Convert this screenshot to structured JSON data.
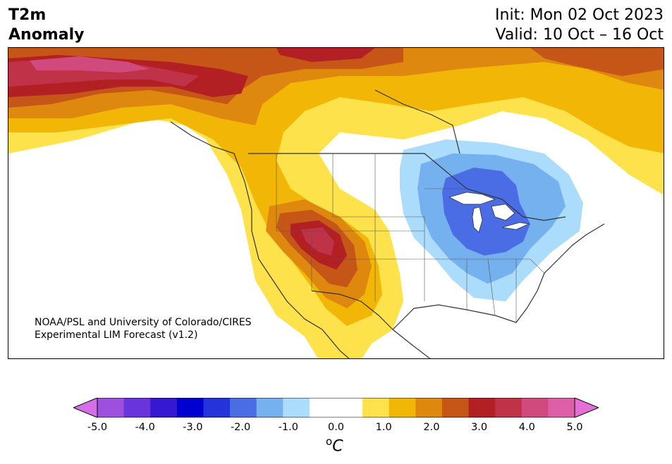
{
  "title": {
    "line1": "T2m",
    "line2": "Anomaly"
  },
  "init": {
    "line1": "Init: Mon 02 Oct 2023",
    "line2": "Valid: 10 Oct – 16 Oct"
  },
  "credit": {
    "line1": "NOAA/PSL and University of Colorado/CIRES",
    "line2": "Experimental LIM Forecast (v1.2)"
  },
  "colorbar": {
    "unit_base": "C",
    "unit_sup": "o",
    "ticks": [
      "-5.0",
      "-4.0",
      "-3.0",
      "-2.0",
      "-1.0",
      "0.0",
      "1.0",
      "2.0",
      "3.0",
      "4.0",
      "5.0"
    ],
    "colors_below": "#d46fe6",
    "colors_above": "#e46fd6",
    "colors": [
      "#9d4fde",
      "#6a34dc",
      "#3518d2",
      "#0000d0",
      "#2434da",
      "#4a6ce4",
      "#76b1ef",
      "#acdcfb",
      "#ffffff",
      "#ffffff",
      "#fde24c",
      "#f2b706",
      "#de880f",
      "#c65518",
      "#b32024",
      "#c03248",
      "#d04a7e",
      "#dc5fa8"
    ]
  }
}
